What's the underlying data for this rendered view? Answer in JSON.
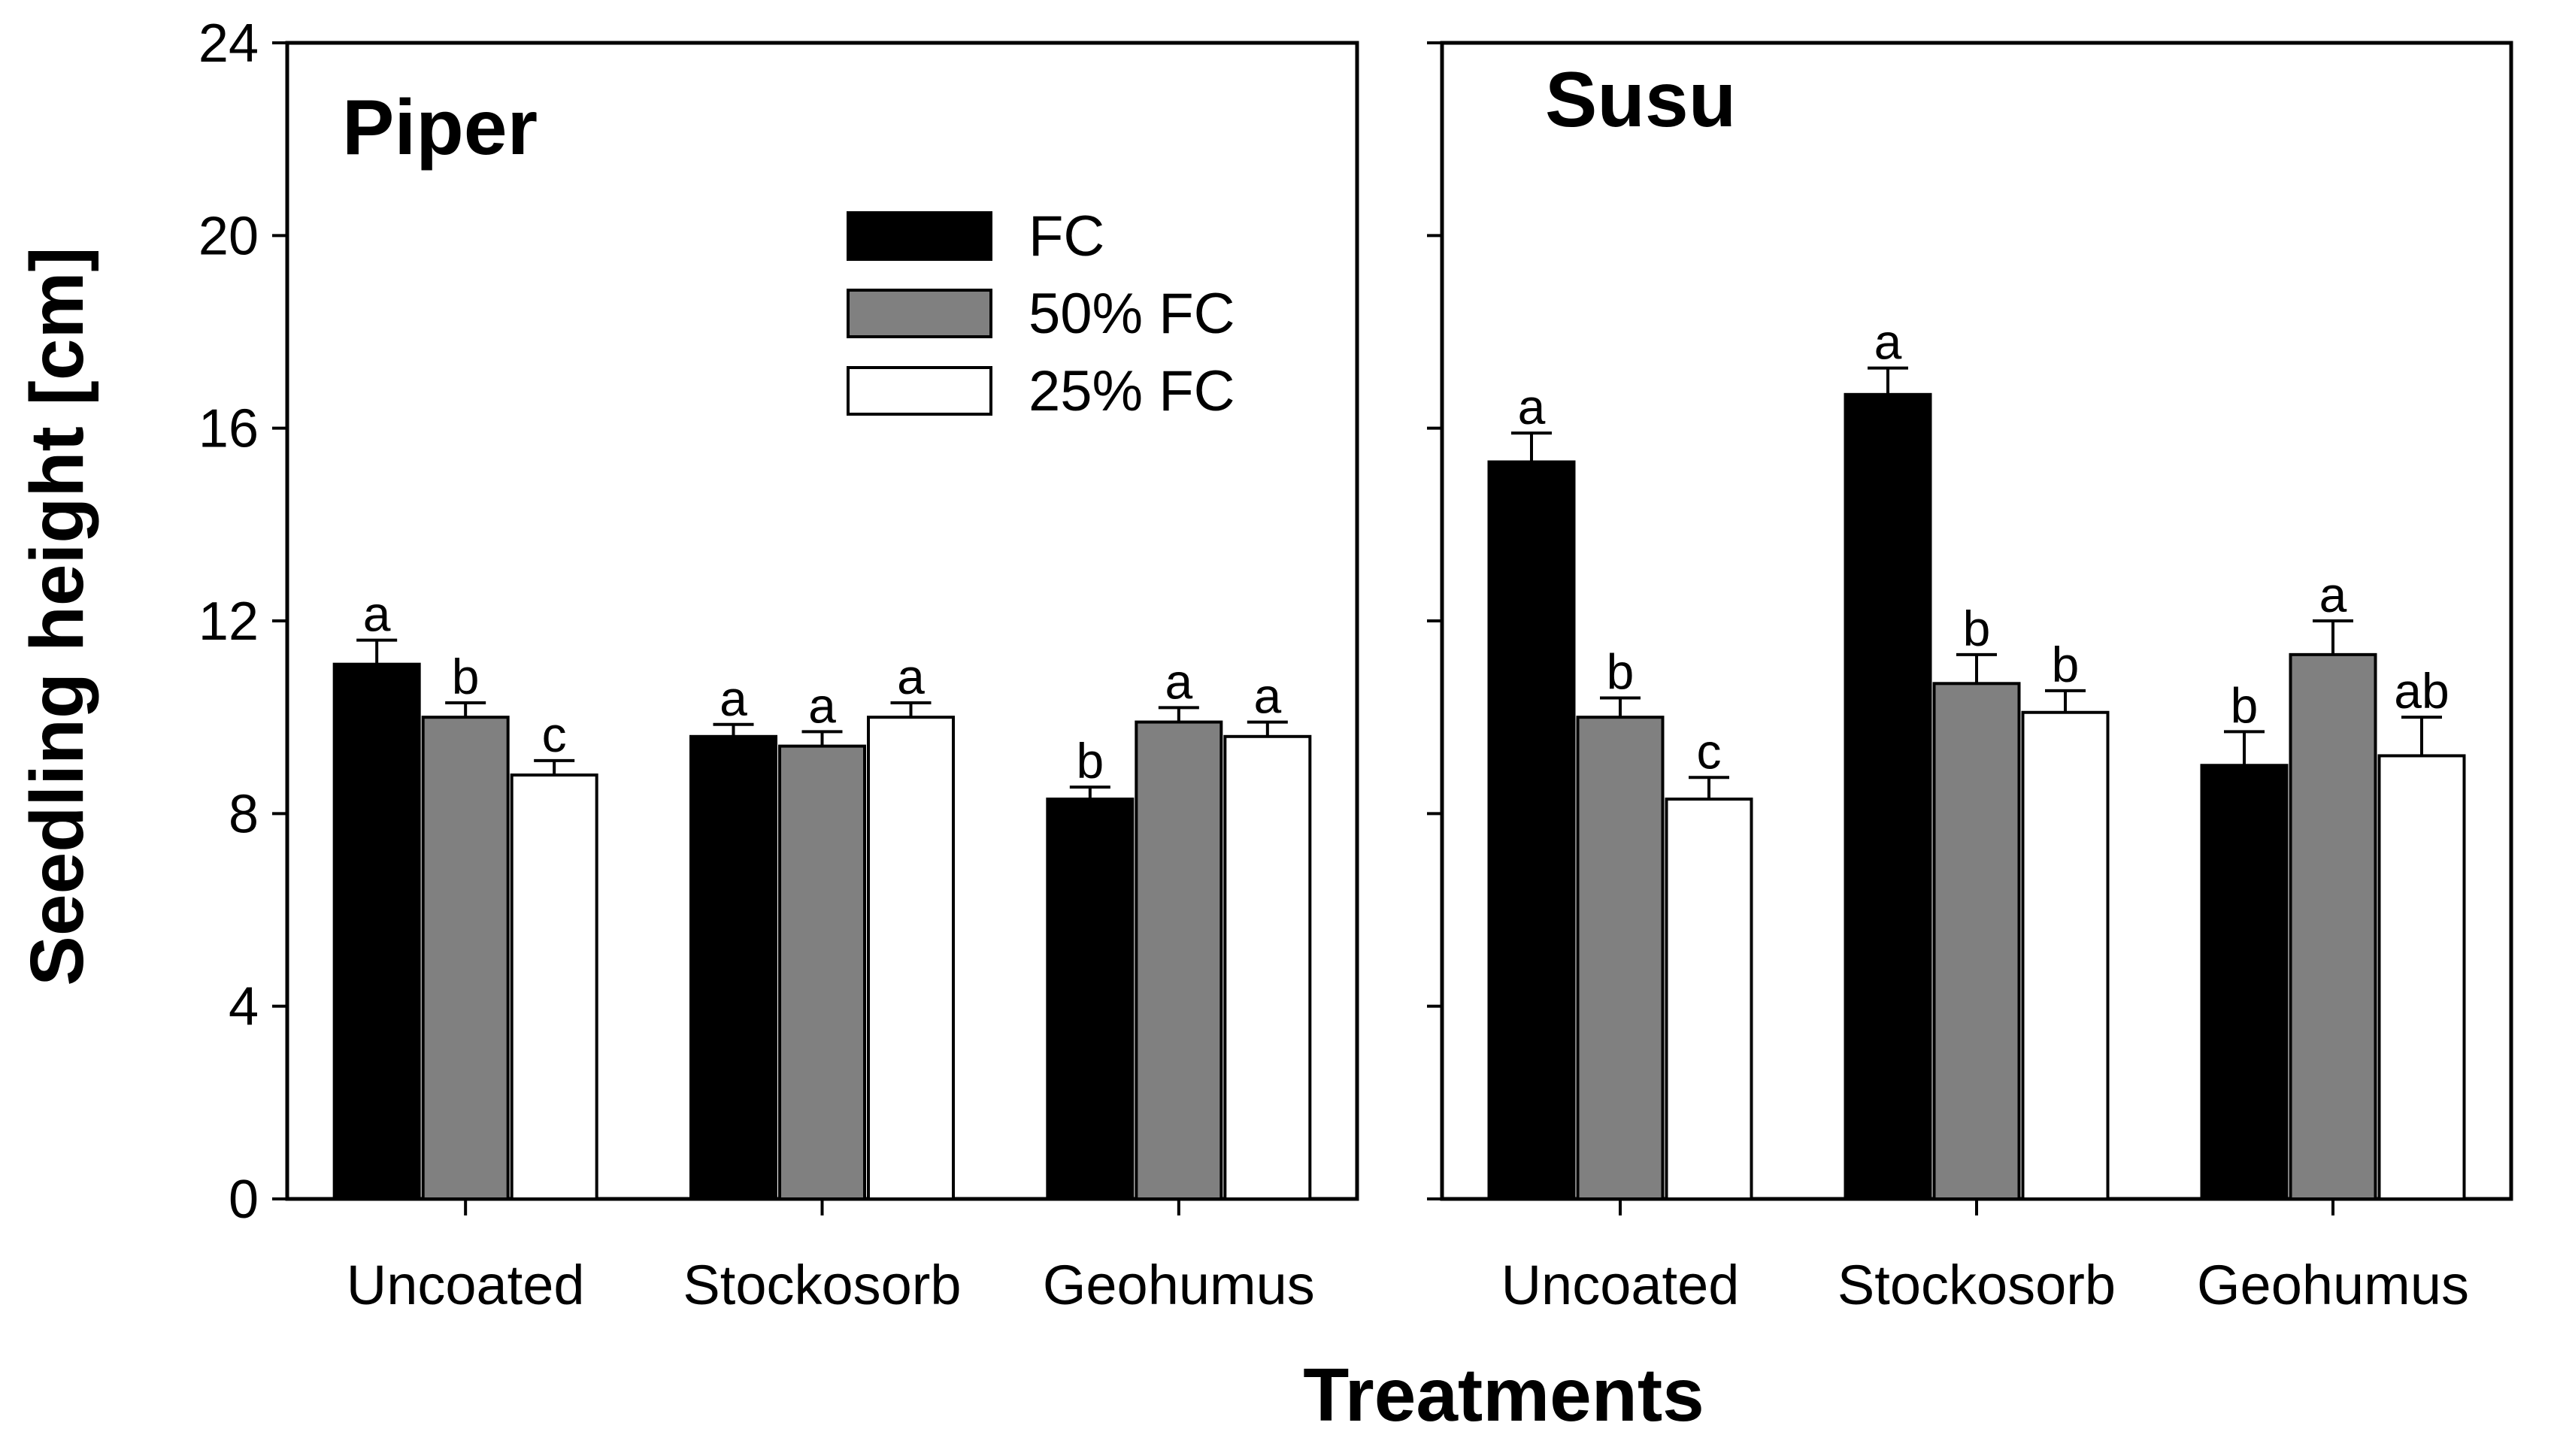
{
  "chart_data": {
    "type": "bar",
    "ylabel": "Seedling height [cm]",
    "xlabel": "Treatments",
    "ylim": [
      0,
      24
    ],
    "yticks": [
      0,
      4,
      8,
      12,
      16,
      20,
      24
    ],
    "ytick_labels": [
      "0",
      "4",
      "8",
      "12",
      "16",
      "20",
      "24"
    ],
    "legend": {
      "placement": "top-center of left panel",
      "entries": [
        {
          "name": "FC",
          "color": "#000000"
        },
        {
          "name": "50% FC",
          "color": "#808080"
        },
        {
          "name": "25% FC",
          "color": "#ffffff"
        }
      ]
    },
    "panels": [
      {
        "title": "Piper",
        "categories": [
          "Uncoated",
          "Stockosorb",
          "Geohumus"
        ],
        "series": [
          {
            "name": "FC",
            "values": [
              11.1,
              9.6,
              8.3
            ],
            "errors": [
              0.5,
              0.25,
              0.25
            ],
            "letters": [
              "a",
              "a",
              "b"
            ]
          },
          {
            "name": "50% FC",
            "values": [
              10.0,
              9.4,
              9.9
            ],
            "errors": [
              0.3,
              0.3,
              0.3
            ],
            "letters": [
              "b",
              "a",
              "a"
            ]
          },
          {
            "name": "25% FC",
            "values": [
              8.8,
              10.0,
              9.6
            ],
            "errors": [
              0.3,
              0.3,
              0.3
            ],
            "letters": [
              "c",
              "a",
              "a"
            ]
          }
        ]
      },
      {
        "title": "Susu",
        "categories": [
          "Uncoated",
          "Stockosorb",
          "Geohumus"
        ],
        "series": [
          {
            "name": "FC",
            "values": [
              15.3,
              16.7,
              9.0
            ],
            "errors": [
              0.6,
              0.55,
              0.7
            ],
            "letters": [
              "a",
              "a",
              "b"
            ]
          },
          {
            "name": "50% FC",
            "values": [
              10.0,
              10.7,
              11.3
            ],
            "errors": [
              0.4,
              0.6,
              0.7
            ],
            "letters": [
              "b",
              "b",
              "a"
            ]
          },
          {
            "name": "25% FC",
            "values": [
              8.3,
              10.1,
              9.2
            ],
            "errors": [
              0.45,
              0.45,
              0.8
            ],
            "letters": [
              "c",
              "b",
              "ab"
            ]
          }
        ]
      }
    ]
  }
}
